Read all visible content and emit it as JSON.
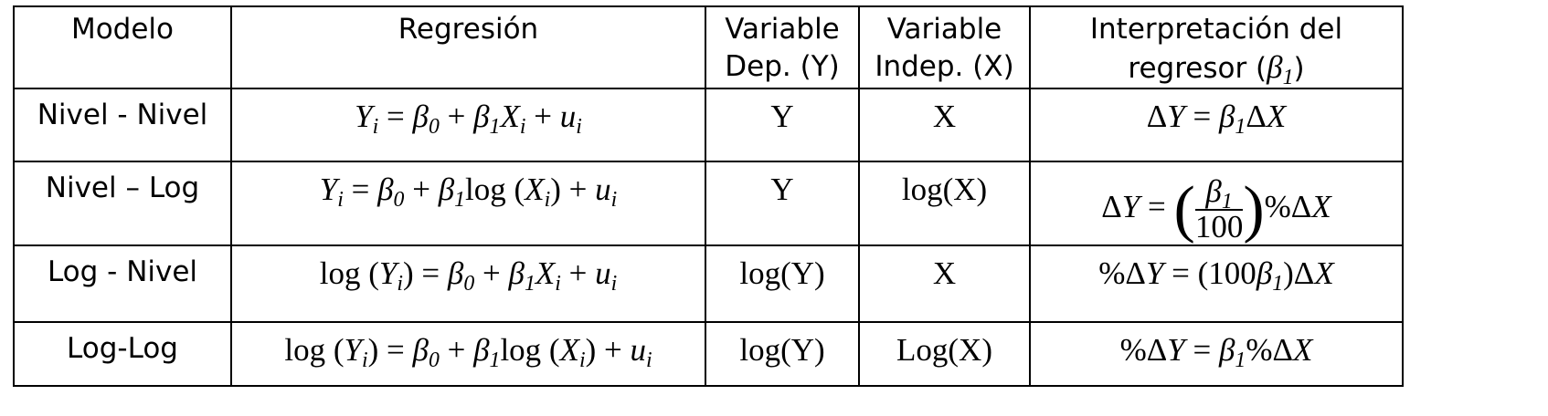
{
  "headers": {
    "modelo": "Modelo",
    "regresion": "Regresión",
    "dep_line1": "Variable",
    "dep_line2": "Dep. (Y)",
    "indep_line1": "Variable",
    "indep_line2": "Indep. (X)",
    "interp_line1": "Interpretación del",
    "interp_line2_prefix": "regresor ("
  },
  "rows": [
    {
      "modelo": "Nivel - Nivel",
      "regresion": "Y_i = β_0 + β_1 X_i + u_i",
      "dep": "Y",
      "indep": "X",
      "interpretacion": "ΔY = β_1 ΔX"
    },
    {
      "modelo": "Nivel – Log",
      "regresion": "Y_i = β_0 + β_1 log(X_i) + u_i",
      "dep": "Y",
      "indep": "log(X)",
      "interpretacion": "ΔY = (β_1 / 100) %ΔX"
    },
    {
      "modelo": "Log - Nivel",
      "regresion": "log(Y_i) = β_0 + β_1 X_i + u_i",
      "dep": "log(Y)",
      "indep": "X",
      "interpretacion": "%ΔY = (100β_1)ΔX"
    },
    {
      "modelo": "Log-Log",
      "regresion": "log(Y_i) = β_0 + β_1 log(X_i) + u_i",
      "dep": "log(Y)",
      "indep": "Log(X)",
      "interpretacion": "%ΔY = β_1 %ΔX"
    }
  ]
}
